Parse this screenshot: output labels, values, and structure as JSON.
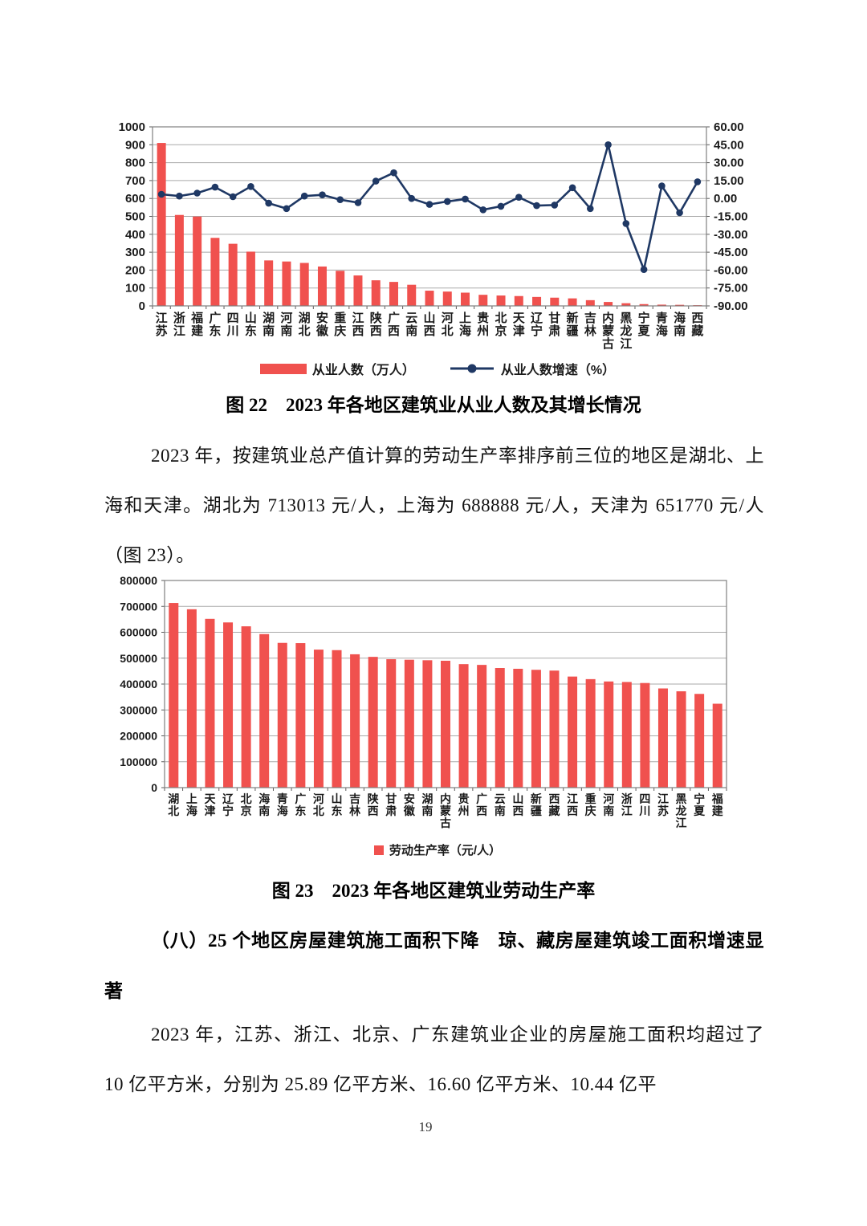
{
  "figure22": {
    "caption": "图 22　2023 年各地区建筑业从业人数及其增长情况",
    "legend_bar": "从业人数（万人）",
    "legend_line": "从业人数增速（%）"
  },
  "paragraph1": "2023 年，按建筑业总产值计算的劳动生产率排序前三位的地区是湖北、上海和天津。湖北为 713013 元/人，上海为 688888 元/人，天津为 651770 元/人（图 23）。",
  "figure23": {
    "caption": "图 23　2023 年各地区建筑业劳动生产率",
    "legend_bar": "劳动生产率（元/人）"
  },
  "heading": "（八）25 个地区房屋建筑施工面积下降　琼、藏房屋建筑竣工面积增速显著",
  "paragraph2": "2023 年，江苏、浙江、北京、广东建筑业企业的房屋施工面积均超过了 10 亿平方米，分别为 25.89 亿平方米、16.60 亿平方米、10.44 亿平",
  "page": {
    "number": "19"
  },
  "colors": {
    "bar": "#F0514E",
    "line": "#1F3864",
    "grid": "#a9a9a9"
  },
  "chart_data": [
    {
      "type": "bar",
      "combo": "bar+line, dual axis",
      "title": "图22 2023年各地区建筑业从业人数及其增长情况",
      "categories": [
        "江苏",
        "浙江",
        "福建",
        "广东",
        "四川",
        "山东",
        "湖南",
        "河南",
        "湖北",
        "安徽",
        "重庆",
        "江西",
        "陕西",
        "广西",
        "云南",
        "山西",
        "河北",
        "上海",
        "贵州",
        "北京",
        "天津",
        "辽宁",
        "甘肃",
        "新疆",
        "吉林",
        "内蒙古",
        "黑龙江",
        "宁夏",
        "青海",
        "海南",
        "西藏"
      ],
      "series": [
        {
          "name": "从业人数（万人）",
          "type": "bar",
          "axis": "left",
          "values": [
            910,
            508,
            499,
            380,
            347,
            303,
            254,
            248,
            240,
            220,
            196,
            170,
            143,
            134,
            118,
            85,
            80,
            74,
            62,
            58,
            55,
            50,
            46,
            42,
            32,
            22,
            15,
            10,
            7,
            6,
            4
          ]
        },
        {
          "name": "从业人数增速（%）",
          "type": "line",
          "axis": "right",
          "values": [
            3.5,
            2,
            4.5,
            9.5,
            1.5,
            10,
            -4,
            -8.5,
            2,
            3,
            -1,
            -3.5,
            14.5,
            21.5,
            0,
            -5,
            -2.5,
            -0.5,
            -9.5,
            -6.5,
            1,
            -6,
            -5.5,
            9,
            -8.5,
            45,
            -21,
            -59.5,
            10.5,
            -12,
            14
          ]
        }
      ],
      "left_axis": {
        "min": 0,
        "max": 1000,
        "step": 100
      },
      "right_axis": {
        "min": -90,
        "max": 60,
        "step": 15,
        "decimals": 2
      },
      "xlabel": "",
      "ylabel": "",
      "grid": true,
      "legend_position": "bottom"
    },
    {
      "type": "bar",
      "title": "图23 2023年各地区建筑业劳动生产率",
      "categories": [
        "湖北",
        "上海",
        "天津",
        "辽宁",
        "北京",
        "海南",
        "青海",
        "广东",
        "河北",
        "山东",
        "吉林",
        "陕西",
        "甘肃",
        "安徽",
        "湖南",
        "内蒙古",
        "贵州",
        "广西",
        "云南",
        "山西",
        "新疆",
        "西藏",
        "江西",
        "重庆",
        "河南",
        "浙江",
        "四川",
        "江苏",
        "黑龙江",
        "宁夏",
        "福建"
      ],
      "series": [
        {
          "name": "劳动生产率（元/人）",
          "type": "bar",
          "values": [
            713013,
            688888,
            651770,
            638000,
            623000,
            593000,
            559000,
            558000,
            533000,
            531000,
            515000,
            505000,
            496000,
            494000,
            492000,
            490000,
            477000,
            474000,
            462000,
            459000,
            455000,
            452000,
            429000,
            419000,
            410000,
            408000,
            404000,
            383000,
            372000,
            362000,
            324000
          ]
        }
      ],
      "left_axis": {
        "min": 0,
        "max": 800000,
        "step": 100000
      },
      "xlabel": "",
      "ylabel": "",
      "grid": true,
      "legend_position": "bottom"
    }
  ]
}
